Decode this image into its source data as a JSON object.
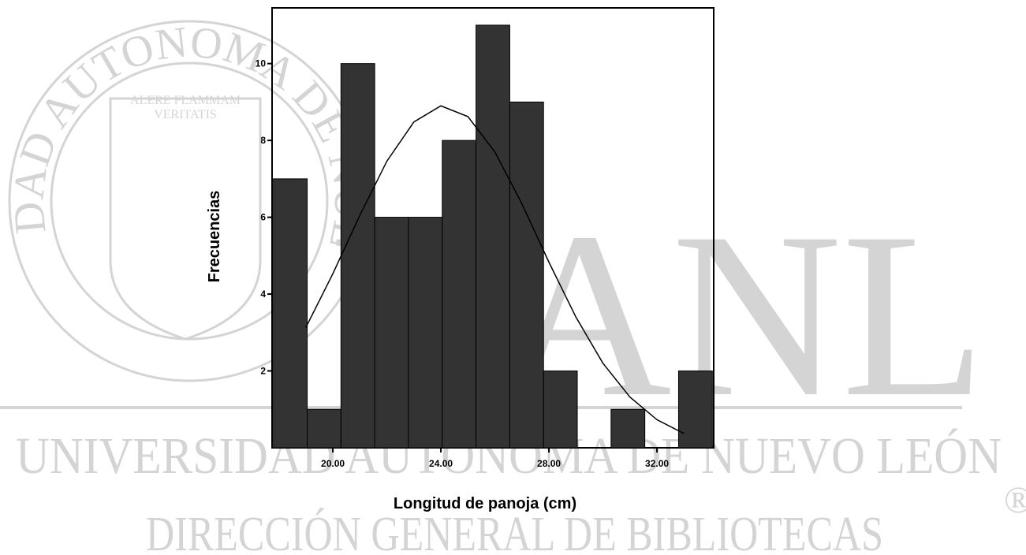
{
  "chart_data": {
    "type": "histogram",
    "xlabel": "Longitud de panoja (cm)",
    "ylabel": "Frecuencias",
    "bins": [
      17.8,
      19.05,
      20.3,
      21.55,
      22.8,
      24.05,
      25.3,
      26.55,
      27.8,
      29.05,
      30.3,
      31.55,
      32.8,
      34.05
    ],
    "values": [
      7,
      1,
      10,
      6,
      6,
      8,
      11,
      9,
      2,
      0,
      1,
      0,
      2
    ],
    "color": "#333333",
    "curve": {
      "color": "#000000",
      "x": [
        19,
        20,
        21,
        22,
        23,
        24,
        25,
        26,
        27,
        28,
        29,
        30,
        31,
        32,
        33
      ],
      "y": [
        3.13,
        4.53,
        6.05,
        7.46,
        8.48,
        8.9,
        8.62,
        7.7,
        6.35,
        4.83,
        3.4,
        2.2,
        1.32,
        0.73,
        0.37
      ]
    },
    "xlim": [
      17.75,
      34.1
    ],
    "ylim": [
      0,
      11.45
    ],
    "xticks": [
      {
        "value": 20,
        "label": "20.00"
      },
      {
        "value": 24,
        "label": "24.00"
      },
      {
        "value": 28,
        "label": "28.00"
      },
      {
        "value": 32,
        "label": "32.00"
      }
    ],
    "yticks": [
      2,
      4,
      6,
      8,
      10
    ]
  },
  "watermark": {
    "seal_text": "UNIVERSIDAD AUTONOMA DE NUEVO LEON",
    "motto_1": "ALERE FLAMMAM",
    "motto_2": "VERITATIS",
    "logo": "UANL",
    "university": "UNIVERSIDAD AUTÓNOMA DE NUEVO LEÓN",
    "registered": "®",
    "department": "DIRECCIÓN GENERAL DE BIBLIOTECAS"
  }
}
